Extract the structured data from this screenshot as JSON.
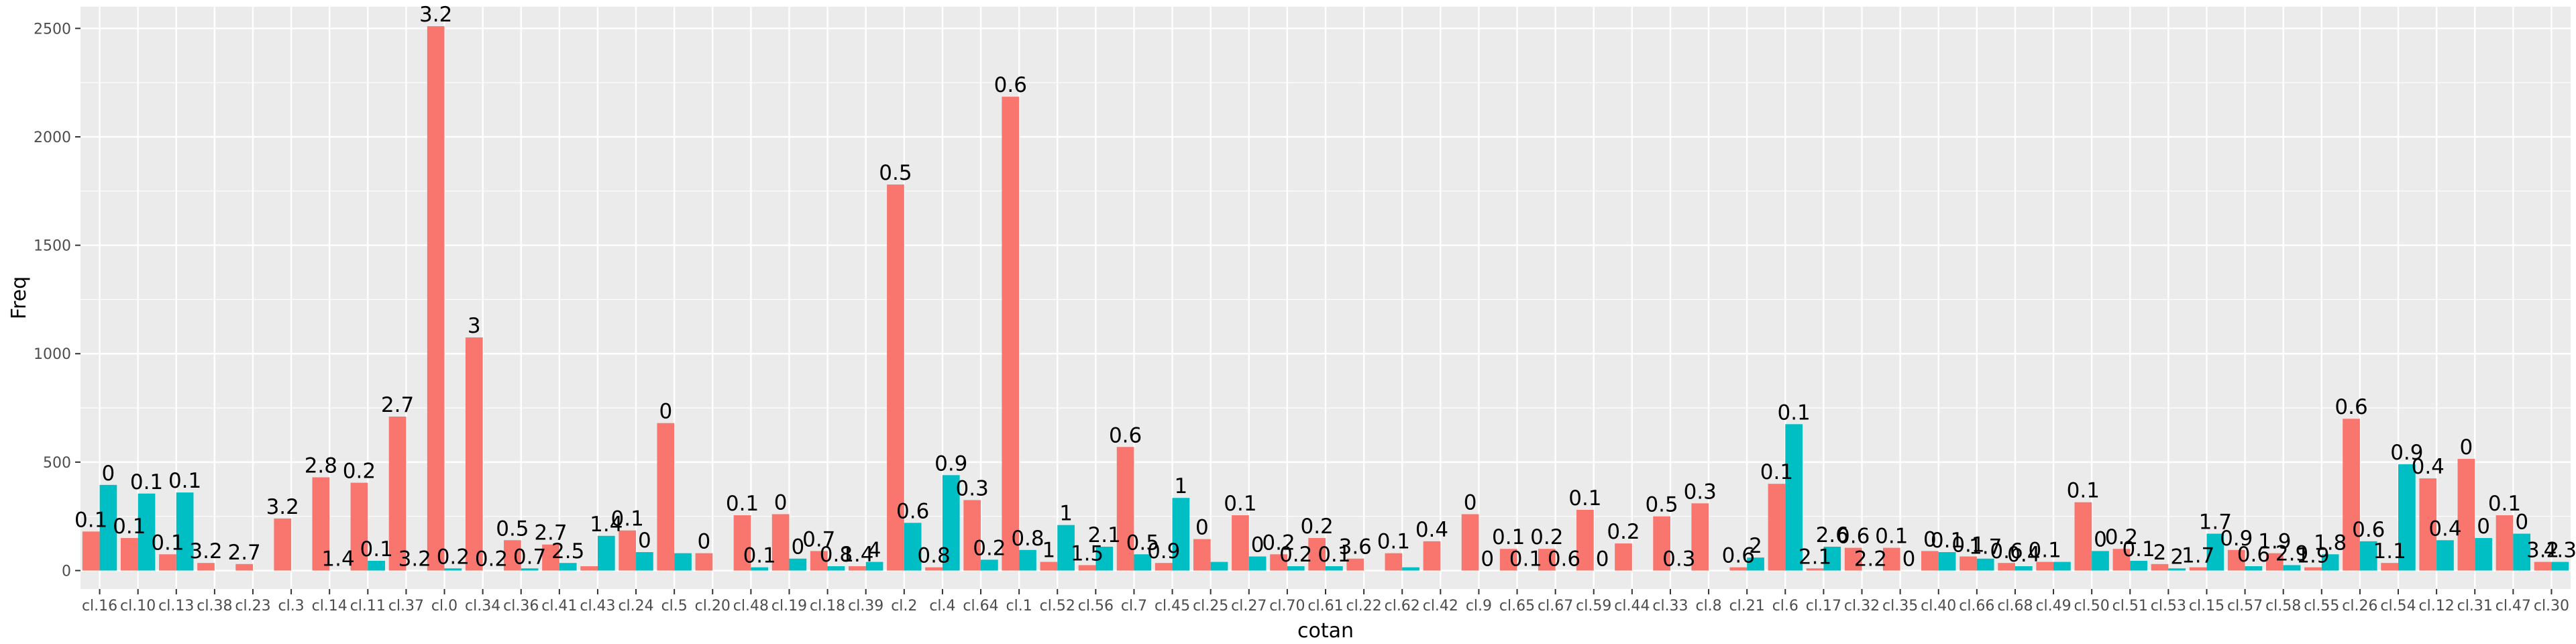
{
  "chart_data": {
    "type": "bar",
    "xlabel": "cotan",
    "ylabel": "Freq",
    "ylim": [
      -85,
      2600
    ],
    "yticks": [
      0,
      500,
      1000,
      1500,
      2000,
      2500
    ],
    "grid": true,
    "legend": "none",
    "colors": {
      "panel": "#ebebeb",
      "grid": "#ffffff",
      "series1": "#f8766d",
      "series2": "#00bfc4"
    },
    "categories": [
      "cl.16",
      "cl.10",
      "cl.13",
      "cl.38",
      "cl.23",
      "cl.3",
      "cl.14",
      "cl.11",
      "cl.37",
      "cl.0",
      "cl.34",
      "cl.36",
      "cl.41",
      "cl.43",
      "cl.24",
      "cl.5",
      "cl.20",
      "cl.48",
      "cl.19",
      "cl.18",
      "cl.39",
      "cl.2",
      "cl.4",
      "cl.64",
      "cl.1",
      "cl.52",
      "cl.56",
      "cl.7",
      "cl.45",
      "cl.25",
      "cl.27",
      "cl.70",
      "cl.61",
      "cl.22",
      "cl.62",
      "cl.42",
      "cl.9",
      "cl.65",
      "cl.67",
      "cl.59",
      "cl.44",
      "cl.33",
      "cl.8",
      "cl.21",
      "cl.6",
      "cl.17",
      "cl.32",
      "cl.35",
      "cl.40",
      "cl.66",
      "cl.68",
      "cl.49",
      "cl.50",
      "cl.51",
      "cl.53",
      "cl.15",
      "cl.57",
      "cl.58",
      "cl.55",
      "cl.26",
      "cl.54",
      "cl.12",
      "cl.31",
      "cl.47",
      "cl.30"
    ],
    "series": [
      {
        "values": [
          180,
          150,
          75,
          35,
          30,
          240,
          430,
          405,
          710,
          2510,
          1075,
          140,
          120,
          20,
          185,
          680,
          80,
          255,
          260,
          90,
          20,
          1780,
          15,
          325,
          2185,
          40,
          25,
          570,
          35,
          145,
          255,
          75,
          150,
          55,
          80,
          135,
          260,
          100,
          100,
          280,
          125,
          250,
          310,
          15,
          400,
          10,
          105,
          105,
          90,
          65,
          35,
          40,
          315,
          100,
          30,
          15,
          95,
          80,
          15,
          700,
          35,
          425,
          515,
          255,
          40
        ],
        "labels": [
          "0.1",
          "0.1",
          "0.1",
          "3.2",
          "2.7",
          "3.2",
          "2.8",
          "0.2",
          "2.7",
          "3.2",
          "3",
          "0.5",
          "2.7",
          "",
          "0.1",
          "0",
          "0",
          "0.1",
          "0",
          "0.7",
          "1.4",
          "0.5",
          "0.8",
          "0.3",
          "0.6",
          "1",
          "1.5",
          "0.6",
          "0.9",
          "0",
          "0.1",
          "0.2",
          "0.2",
          "3.6",
          "0.1",
          "0.4",
          "0",
          "0.1",
          "0.2",
          "0.1",
          "0.2",
          "0.5",
          "0.3",
          "0.6",
          "0.1",
          "2.1",
          "0.6",
          "0.1",
          "0",
          "0.1",
          "0.6",
          "0.1",
          "0.1",
          "0.2",
          "2",
          "1.7",
          "0.9",
          "1.9",
          "1.9",
          "0.6",
          "1.1",
          "0.4",
          "0",
          "0.1",
          "3.2"
        ]
      },
      {
        "values": [
          395,
          355,
          360,
          0,
          0,
          0,
          0,
          45,
          0,
          10,
          0,
          10,
          35,
          160,
          85,
          80,
          0,
          15,
          55,
          20,
          40,
          220,
          440,
          50,
          95,
          210,
          110,
          75,
          335,
          40,
          65,
          20,
          20,
          0,
          15,
          0,
          0,
          0,
          0,
          0,
          0,
          0,
          0,
          60,
          675,
          110,
          0,
          0,
          85,
          55,
          20,
          40,
          90,
          45,
          10,
          170,
          20,
          25,
          75,
          135,
          490,
          140,
          150,
          170,
          40
        ],
        "labels": [
          "0",
          "0.1",
          "0.1",
          "",
          "",
          "",
          "1.4",
          "0.1",
          "3.2",
          "0.2",
          "0.2",
          "0.7",
          "2.5",
          "1.4",
          "0",
          "",
          "",
          "0.1",
          "0",
          "0.8",
          "4",
          "0.6",
          "0.9",
          "0.2",
          "0.8",
          "1",
          "2.1",
          "0.5",
          "1",
          "",
          "0",
          "0.2",
          "0.1",
          "",
          "",
          "",
          "0",
          "0.1",
          "0.6",
          "0",
          "",
          "0.3",
          "",
          "2",
          "0.1",
          "2.6",
          "2.2",
          "0",
          "0.1",
          "1.7",
          "0.4",
          "",
          "0",
          "0.1",
          "2",
          "1.7",
          "0.6",
          "2.9",
          "1.8",
          "0.6",
          "0.9",
          "0.4",
          "0",
          "0",
          "4.3"
        ]
      }
    ]
  }
}
